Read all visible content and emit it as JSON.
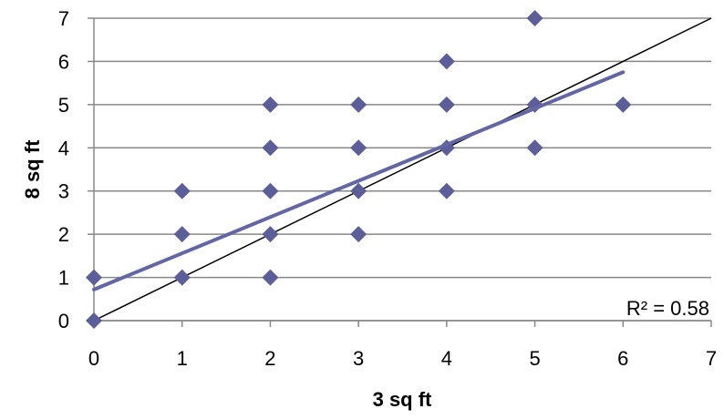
{
  "chart_data": {
    "type": "scatter",
    "xlabel": "3 sq ft",
    "ylabel": "8 sq ft",
    "xlim": [
      0,
      7
    ],
    "ylim": [
      0,
      7
    ],
    "xticks": [
      "0",
      "1",
      "2",
      "3",
      "4",
      "5",
      "6",
      "7"
    ],
    "yticks": [
      "0",
      "1",
      "2",
      "3",
      "4",
      "5",
      "6",
      "7"
    ],
    "grid": "horizontal",
    "points": [
      {
        "x": 0,
        "y": 0
      },
      {
        "x": 0,
        "y": 1
      },
      {
        "x": 1,
        "y": 1
      },
      {
        "x": 1,
        "y": 2
      },
      {
        "x": 1,
        "y": 3
      },
      {
        "x": 2,
        "y": 1
      },
      {
        "x": 2,
        "y": 2
      },
      {
        "x": 2,
        "y": 3
      },
      {
        "x": 2,
        "y": 4
      },
      {
        "x": 2,
        "y": 5
      },
      {
        "x": 3,
        "y": 2
      },
      {
        "x": 3,
        "y": 3
      },
      {
        "x": 3,
        "y": 4
      },
      {
        "x": 3,
        "y": 5
      },
      {
        "x": 4,
        "y": 3
      },
      {
        "x": 4,
        "y": 4
      },
      {
        "x": 4,
        "y": 5
      },
      {
        "x": 4,
        "y": 6
      },
      {
        "x": 5,
        "y": 4
      },
      {
        "x": 5,
        "y": 5
      },
      {
        "x": 5,
        "y": 7
      },
      {
        "x": 6,
        "y": 5
      }
    ],
    "trendline": {
      "x": [
        0,
        6
      ],
      "y": [
        0.72,
        5.75
      ]
    },
    "reference_line": {
      "x": [
        0,
        7
      ],
      "y": [
        0,
        7
      ]
    },
    "r_squared": "R² = 0.58",
    "colors": {
      "marker": "#5b5e99",
      "trendline": "#6366a4",
      "reference_line": "#000000",
      "grid": "#888888",
      "axis": "#888888"
    }
  }
}
